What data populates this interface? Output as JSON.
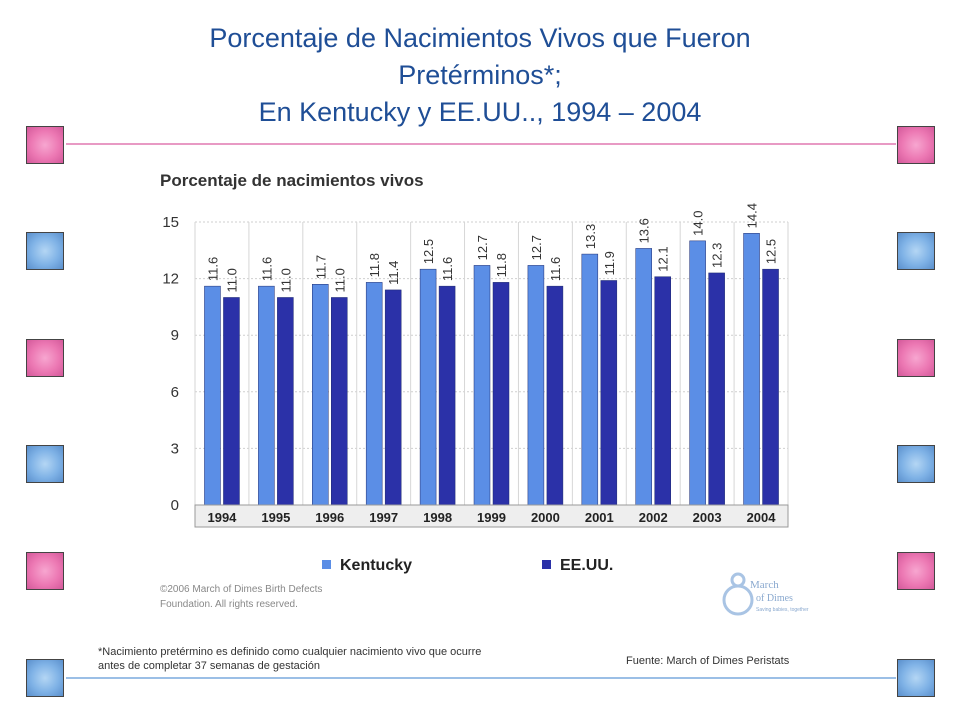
{
  "slide": {
    "title_lines": [
      "Porcentaje de Nacimientos Vivos que Fueron",
      "Pretérminos*;",
      "En Kentucky y EE.UU.., 1994 – 2004"
    ],
    "footnote_lines": [
      "*Nacimiento pretérmino es definido como cualquier nacimiento vivo que ocurre",
      "antes de completar 37 semanas de gestación"
    ],
    "source": "Fuente: March of Dimes Peristats"
  },
  "decor": {
    "pink": "#ec78b3",
    "blue": "#7fb2e6",
    "pink_line": "#e89ac4",
    "blue_line": "#9bbfe6",
    "title_color": "#1f4e96"
  },
  "chart_data": {
    "type": "bar",
    "title": "Porcentaje de nacimientos vivos",
    "categories": [
      "1994",
      "1995",
      "1996",
      "1997",
      "1998",
      "1999",
      "2000",
      "2001",
      "2002",
      "2003",
      "2004"
    ],
    "series": [
      {
        "name": "Kentucky",
        "color": "#5b8ee6",
        "values": [
          11.6,
          11.6,
          11.7,
          11.8,
          12.5,
          12.7,
          12.7,
          13.3,
          13.6,
          14.0,
          14.4
        ],
        "labels": [
          "11.6",
          "11.6",
          "11.7",
          "11.8",
          "12.5",
          "12.7",
          "12.7",
          "13.3",
          "13.6",
          "14.0",
          "14.4"
        ]
      },
      {
        "name": "EE.UU.",
        "color": "#2b31a8",
        "values": [
          11.0,
          11.0,
          11.0,
          11.4,
          11.6,
          11.8,
          11.6,
          11.9,
          12.1,
          12.3,
          12.5
        ],
        "labels": [
          "11.0",
          "11.0",
          "11.0",
          "11.4",
          "11.6",
          "11.8",
          "11.6",
          "11.9",
          "12.1",
          "12.3",
          "12.5"
        ]
      }
    ],
    "yticks": [
      "0",
      "3",
      "6",
      "9",
      "12",
      "15"
    ],
    "ylim": [
      0,
      15
    ],
    "grid": true,
    "legend_position": "bottom",
    "copyright_lines": [
      "©2006 March of Dimes Birth Defects",
      "Foundation. All rights reserved."
    ],
    "logo_text": [
      "March",
      "of Dimes",
      "Saving babies, together"
    ]
  }
}
